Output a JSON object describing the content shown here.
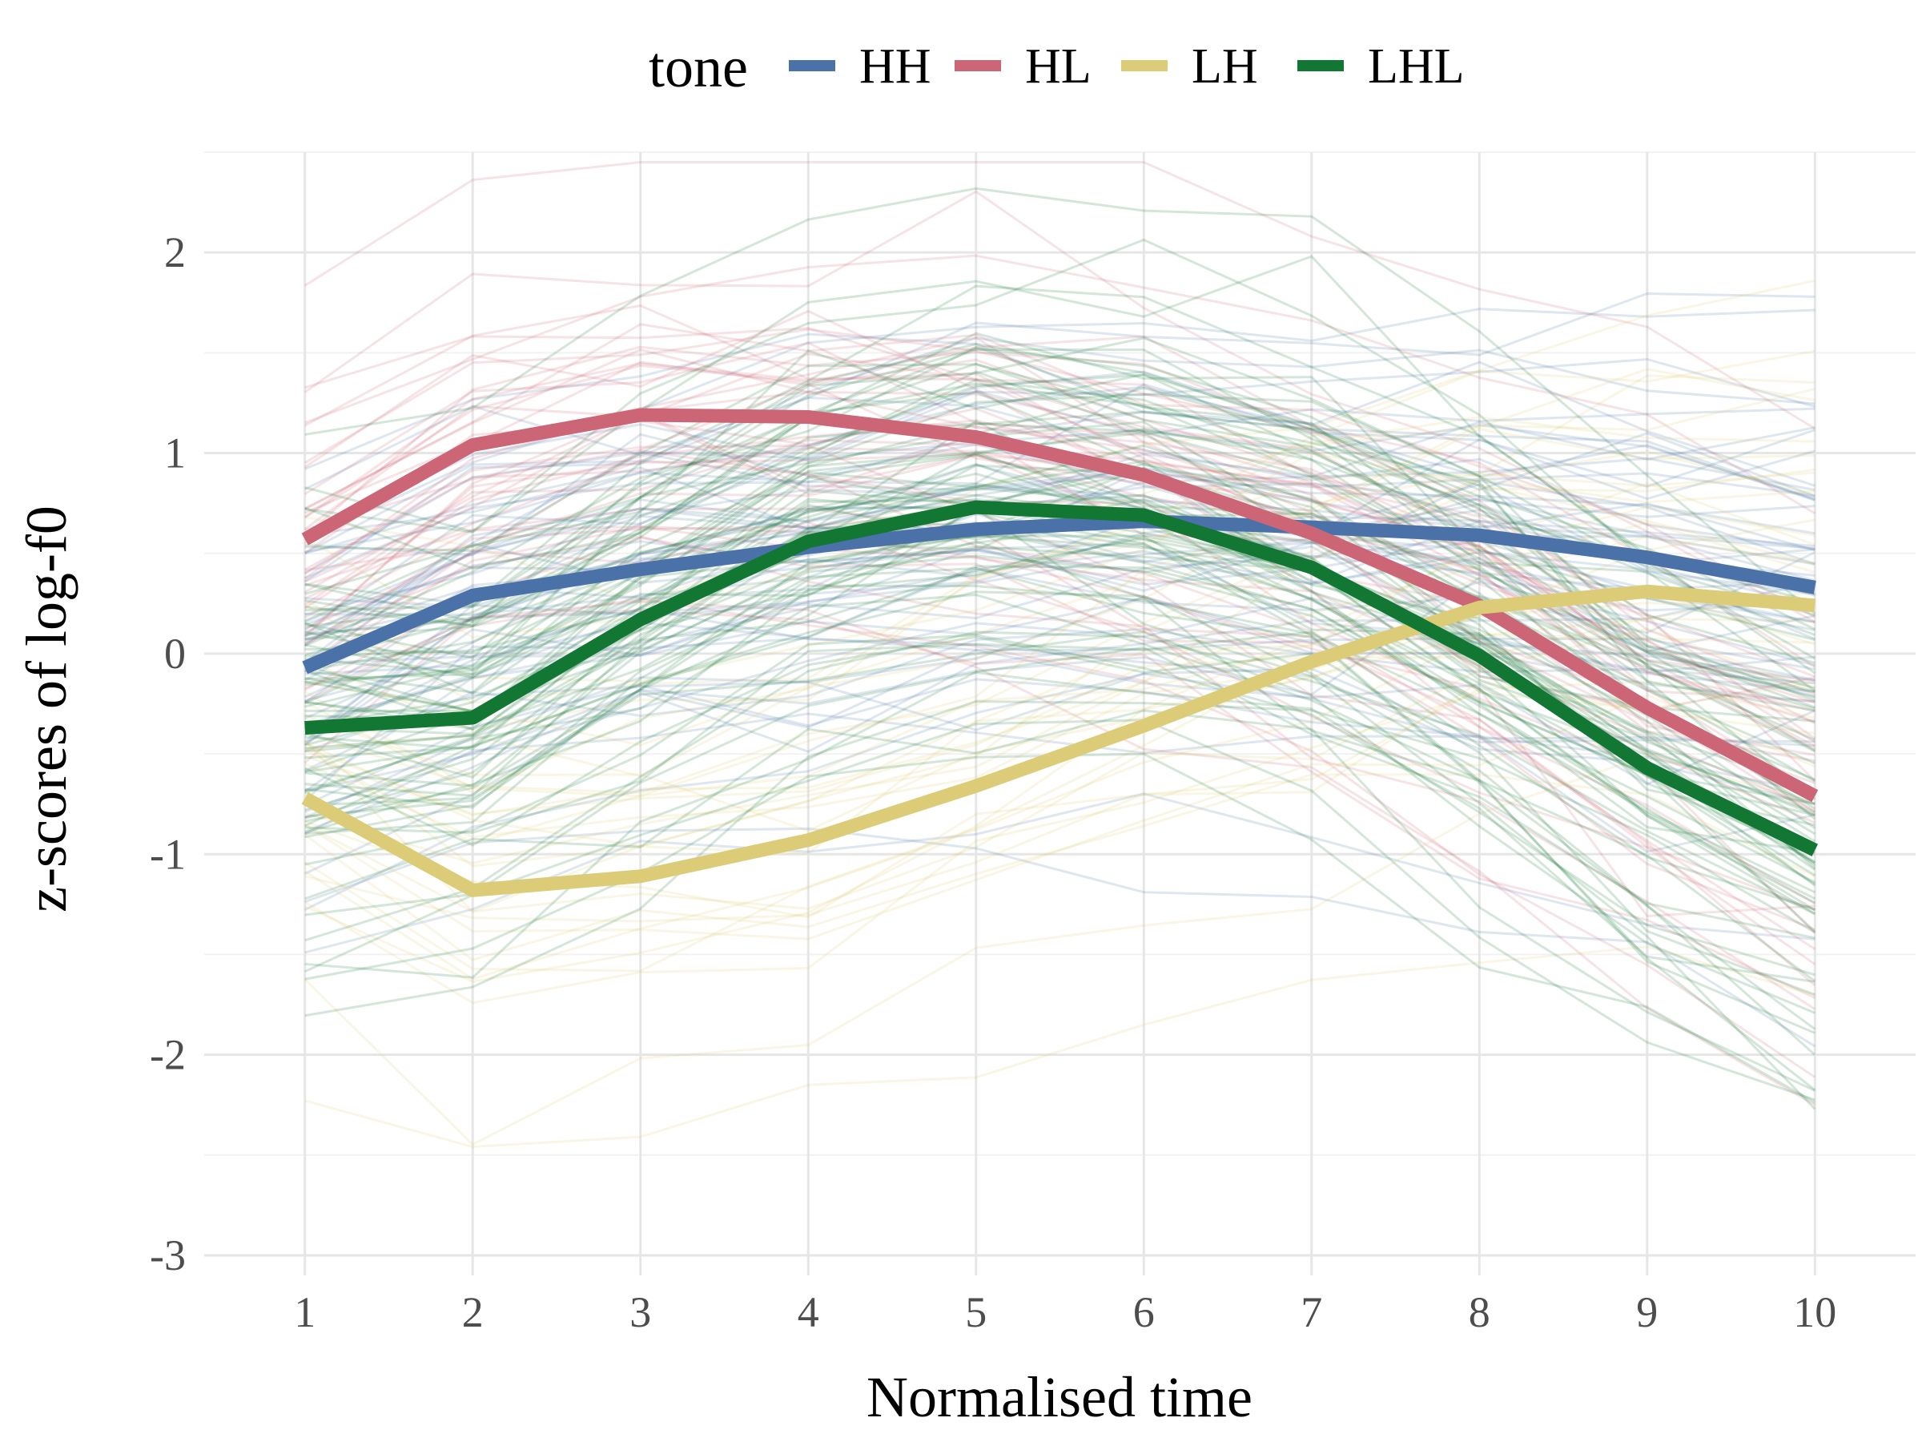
{
  "chart_data": {
    "type": "line",
    "title": "",
    "xlabel": "Normalised time",
    "ylabel": "z-scores of log-f0",
    "x": [
      1,
      2,
      3,
      4,
      5,
      6,
      7,
      8,
      9,
      10
    ],
    "x_ticks": [
      "1",
      "2",
      "3",
      "4",
      "5",
      "6",
      "7",
      "8",
      "9",
      "10"
    ],
    "y_ticks": [
      {
        "value": 2,
        "label": "2"
      },
      {
        "value": 1,
        "label": "1"
      },
      {
        "value": 0,
        "label": "0"
      },
      {
        "value": -1,
        "label": "-1"
      },
      {
        "value": -2,
        "label": "-2"
      },
      {
        "value": -3,
        "label": "-3"
      }
    ],
    "xlim": [
      0.4,
      10.6
    ],
    "ylim": [
      -3.1,
      2.5
    ],
    "grid": true,
    "legend": {
      "title": "tone",
      "position": "top"
    },
    "series": [
      {
        "name": "HH",
        "color": "#4a72a8",
        "values": [
          -0.07,
          0.29,
          0.42,
          0.53,
          0.62,
          0.66,
          0.63,
          0.59,
          0.48,
          0.33
        ]
      },
      {
        "name": "HL",
        "color": "#cc6677",
        "values": [
          0.57,
          1.04,
          1.19,
          1.18,
          1.08,
          0.89,
          0.6,
          0.24,
          -0.27,
          -0.71
        ]
      },
      {
        "name": "LH",
        "color": "#ddcc77",
        "values": [
          -0.72,
          -1.18,
          -1.11,
          -0.93,
          -0.66,
          -0.36,
          -0.04,
          0.23,
          0.31,
          0.24
        ]
      },
      {
        "name": "LHL",
        "color": "#117733",
        "values": [
          -0.37,
          -0.32,
          0.17,
          0.56,
          0.73,
          0.69,
          0.43,
          -0.01,
          -0.57,
          -0.98
        ]
      }
    ],
    "individual_tokens_note": "many faint per-token contours drawn behind the group means",
    "token_opacity": 0.18
  }
}
